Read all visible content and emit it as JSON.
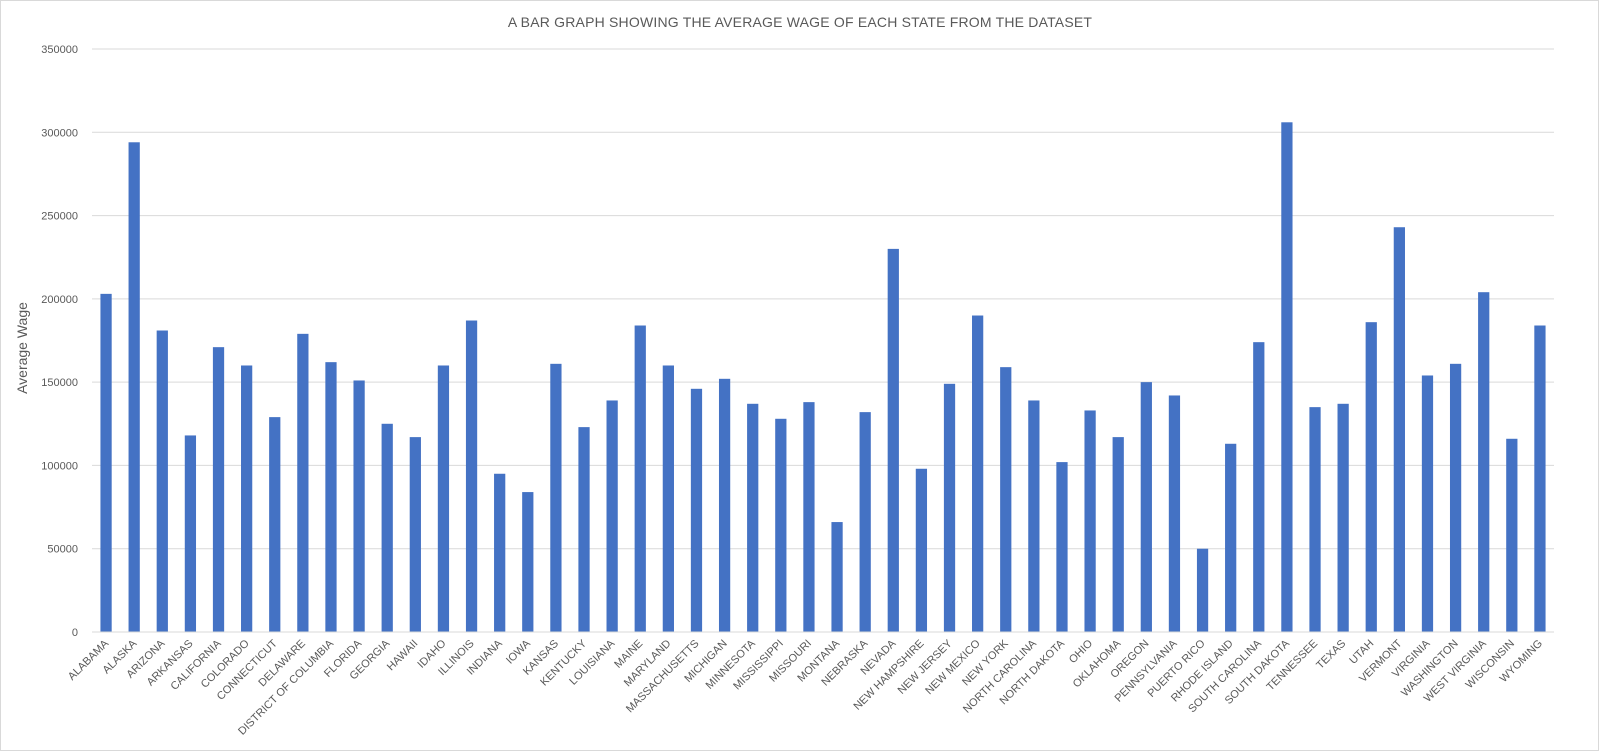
{
  "chart_data": {
    "type": "bar",
    "title": "A BAR GRAPH SHOWING THE AVERAGE WAGE OF EACH STATE FROM THE DATASET",
    "xlabel": "",
    "ylabel": "Average Wage",
    "ylim": [
      0,
      350000
    ],
    "yticks": [
      0,
      50000,
      100000,
      150000,
      200000,
      250000,
      300000,
      350000
    ],
    "grid": true,
    "legend": "none",
    "bar_color": "#4472c4",
    "categories": [
      "ALABAMA",
      "ALASKA",
      "ARIZONA",
      "ARKANSAS",
      "CALIFORNIA",
      "COLORADO",
      "CONNECTICUT",
      "DELAWARE",
      "DISTRICT OF COLUMBIA",
      "FLORIDA",
      "GEORGIA",
      "HAWAII",
      "IDAHO",
      "ILLINOIS",
      "INDIANA",
      "IOWA",
      "KANSAS",
      "KENTUCKY",
      "LOUISIANA",
      "MAINE",
      "MARYLAND",
      "MASSACHUSETTS",
      "MICHIGAN",
      "MINNESOTA",
      "MISSISSIPPI",
      "MISSOURI",
      "MONTANA",
      "NEBRASKA",
      "NEVADA",
      "NEW HAMPSHIRE",
      "NEW JERSEY",
      "NEW MEXICO",
      "NEW YORK",
      "NORTH CAROLINA",
      "NORTH DAKOTA",
      "OHIO",
      "OKLAHOMA",
      "OREGON",
      "PENNSYLVANIA",
      "PUERTO RICO",
      "RHODE ISLAND",
      "SOUTH CAROLINA",
      "SOUTH DAKOTA",
      "TENNESSEE",
      "TEXAS",
      "UTAH",
      "VERMONT",
      "VIRGINIA",
      "WASHINGTON",
      "WEST VIRGINIA",
      "WISCONSIN",
      "WYOMING"
    ],
    "values": [
      203000,
      294000,
      181000,
      118000,
      171000,
      160000,
      129000,
      179000,
      162000,
      151000,
      125000,
      117000,
      160000,
      187000,
      95000,
      84000,
      161000,
      123000,
      139000,
      184000,
      160000,
      146000,
      152000,
      137000,
      128000,
      138000,
      66000,
      132000,
      230000,
      98000,
      149000,
      190000,
      159000,
      139000,
      102000,
      133000,
      117000,
      150000,
      142000,
      50000,
      113000,
      174000,
      306000,
      135000,
      137000,
      186000,
      243000,
      154000,
      161000,
      204000,
      116000,
      184000
    ]
  }
}
